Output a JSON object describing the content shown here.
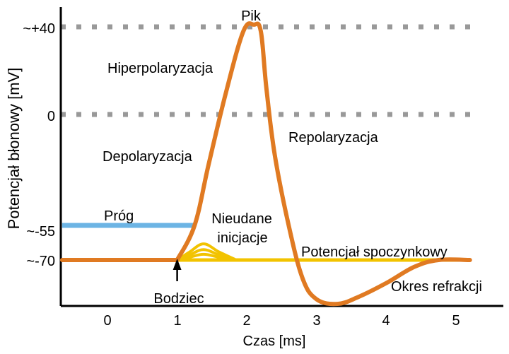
{
  "chart_data": {
    "type": "line",
    "xlabel": "Czas [ms]",
    "ylabel": "Potencjał błonowy [mV]",
    "x_ticks": [
      "0",
      "1",
      "2",
      "3",
      "4",
      "5"
    ],
    "y_ticks": [
      "~+40",
      "0",
      "~-55",
      "~-70"
    ],
    "xlim": [
      -0.7,
      5.6
    ],
    "ylim": [
      -100,
      50
    ],
    "grid": false,
    "reference_lines": [
      {
        "y": 40,
        "style": "dotted",
        "color": "#999999"
      },
      {
        "y": 0,
        "style": "dotted",
        "color": "#999999"
      }
    ],
    "threshold": {
      "label": "Próg",
      "y": -55,
      "x": [
        -0.65,
        1.25
      ],
      "color": "#6cb4e4"
    },
    "series": [
      {
        "color": "#e07a22",
        "x": [
          -0.65,
          1.0,
          1.25,
          1.45,
          1.7,
          1.95,
          2.1,
          2.2,
          2.28,
          2.4,
          2.6,
          2.8,
          3.0,
          3.3,
          3.6,
          4.0,
          4.4,
          4.75,
          5.2
        ],
        "y": [
          -70,
          -70,
          -55,
          -25,
          10,
          38,
          41,
          38,
          12,
          -20,
          -55,
          -78,
          -87,
          -89,
          -86,
          -80,
          -73,
          -70,
          -70
        ]
      },
      {
        "color": "#f2c300",
        "x": [
          -0.65,
          1.0,
          1.35,
          1.6,
          1.85,
          5.2
        ],
        "y": [
          -70,
          -70,
          -63,
          -68,
          -70,
          -70
        ]
      }
    ],
    "failed_initiations_color": "#f2c300",
    "annotations": {
      "peak": "Pik",
      "hyperpol": "Hiperpolaryzacja",
      "depol": "Depolaryzacja",
      "repol": "Repolaryzacja",
      "threshold": "Próg",
      "failed_1": "Nieudane",
      "failed_2": "inicjacje",
      "resting": "Potencjał spoczynkowy",
      "stimulus": "Bodziec",
      "refractory": "Okres refrakcji"
    }
  }
}
